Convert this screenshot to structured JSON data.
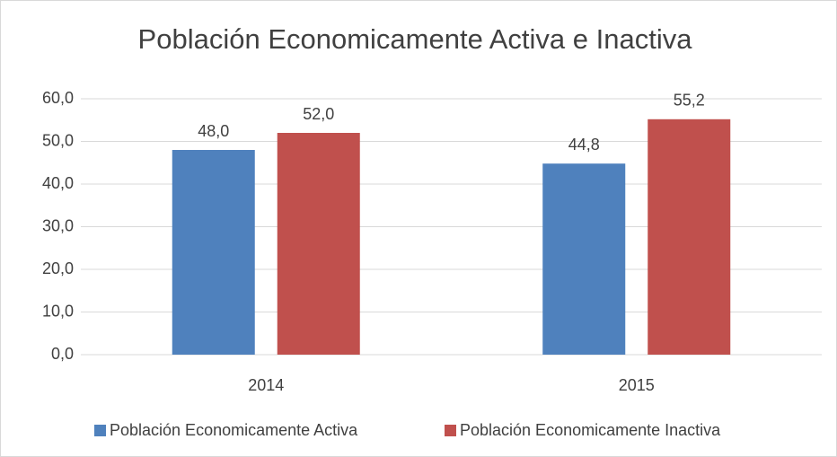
{
  "chart_data": {
    "type": "bar",
    "title": "Población Economicamente Activa e Inactiva",
    "categories": [
      "2014",
      "2015"
    ],
    "series": [
      {
        "name": "Población Economicamente Activa",
        "color": "#4f81bd",
        "values": [
          48.0,
          44.8
        ],
        "value_labels": [
          "48,0",
          "44,8"
        ]
      },
      {
        "name": "Población Economicamente Inactiva",
        "color": "#c0504d",
        "values": [
          52.0,
          55.2
        ],
        "value_labels": [
          "52,0",
          "55,2"
        ]
      }
    ],
    "ylim": [
      0,
      60
    ],
    "yticks": [
      {
        "value": 0,
        "label": "0,0"
      },
      {
        "value": 10,
        "label": "10,0"
      },
      {
        "value": 20,
        "label": "20,0"
      },
      {
        "value": 30,
        "label": "30,0"
      },
      {
        "value": 40,
        "label": "40,0"
      },
      {
        "value": 50,
        "label": "50,0"
      },
      {
        "value": 60,
        "label": "60,0"
      }
    ],
    "grid": true,
    "legend": "bottom"
  }
}
